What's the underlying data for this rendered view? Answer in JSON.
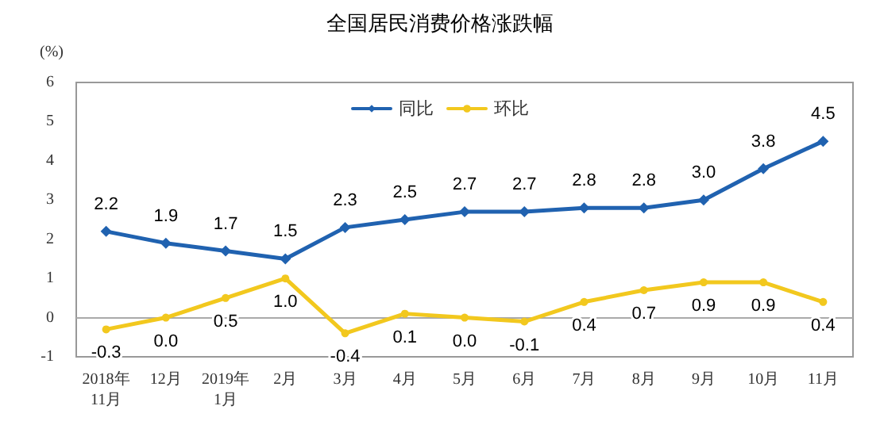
{
  "chart_data": {
    "type": "line",
    "title": "全国居民消费价格涨跌幅",
    "ylabel": "(%)",
    "categories": [
      "2018年\n11月",
      "12月",
      "2019年\n1月",
      "2月",
      "3月",
      "4月",
      "5月",
      "6月",
      "7月",
      "8月",
      "9月",
      "10月",
      "11月"
    ],
    "series": [
      {
        "name": "同比",
        "color": "#2062b0",
        "marker": "diamond",
        "values": [
          2.2,
          1.9,
          1.7,
          1.5,
          2.3,
          2.5,
          2.7,
          2.7,
          2.8,
          2.8,
          3.0,
          3.8,
          4.5
        ],
        "value_labels": [
          "2.2",
          "1.9",
          "1.7",
          "1.5",
          "2.3",
          "2.5",
          "2.7",
          "2.7",
          "2.8",
          "2.8",
          "3.0",
          "3.8",
          "4.5"
        ]
      },
      {
        "name": "环比",
        "color": "#f2c81e",
        "marker": "circle",
        "values": [
          -0.3,
          0.0,
          0.5,
          1.0,
          -0.4,
          0.1,
          0.0,
          -0.1,
          0.4,
          0.7,
          0.9,
          0.9,
          0.4
        ],
        "value_labels": [
          "-0.3",
          "0.0",
          "0.5",
          "1.0",
          "-0.4",
          "0.1",
          "0.0",
          "-0.1",
          "0.4",
          "0.7",
          "0.9",
          "0.9",
          "0.4"
        ]
      }
    ],
    "ylim": [
      -1,
      6
    ],
    "yticks": [
      -1,
      0,
      1,
      2,
      3,
      4,
      5,
      6
    ],
    "ref_lines": [
      {
        "axis": "y",
        "value": 0,
        "color": "#aaaaaa"
      }
    ],
    "legend": "top",
    "line_style": "solid"
  }
}
